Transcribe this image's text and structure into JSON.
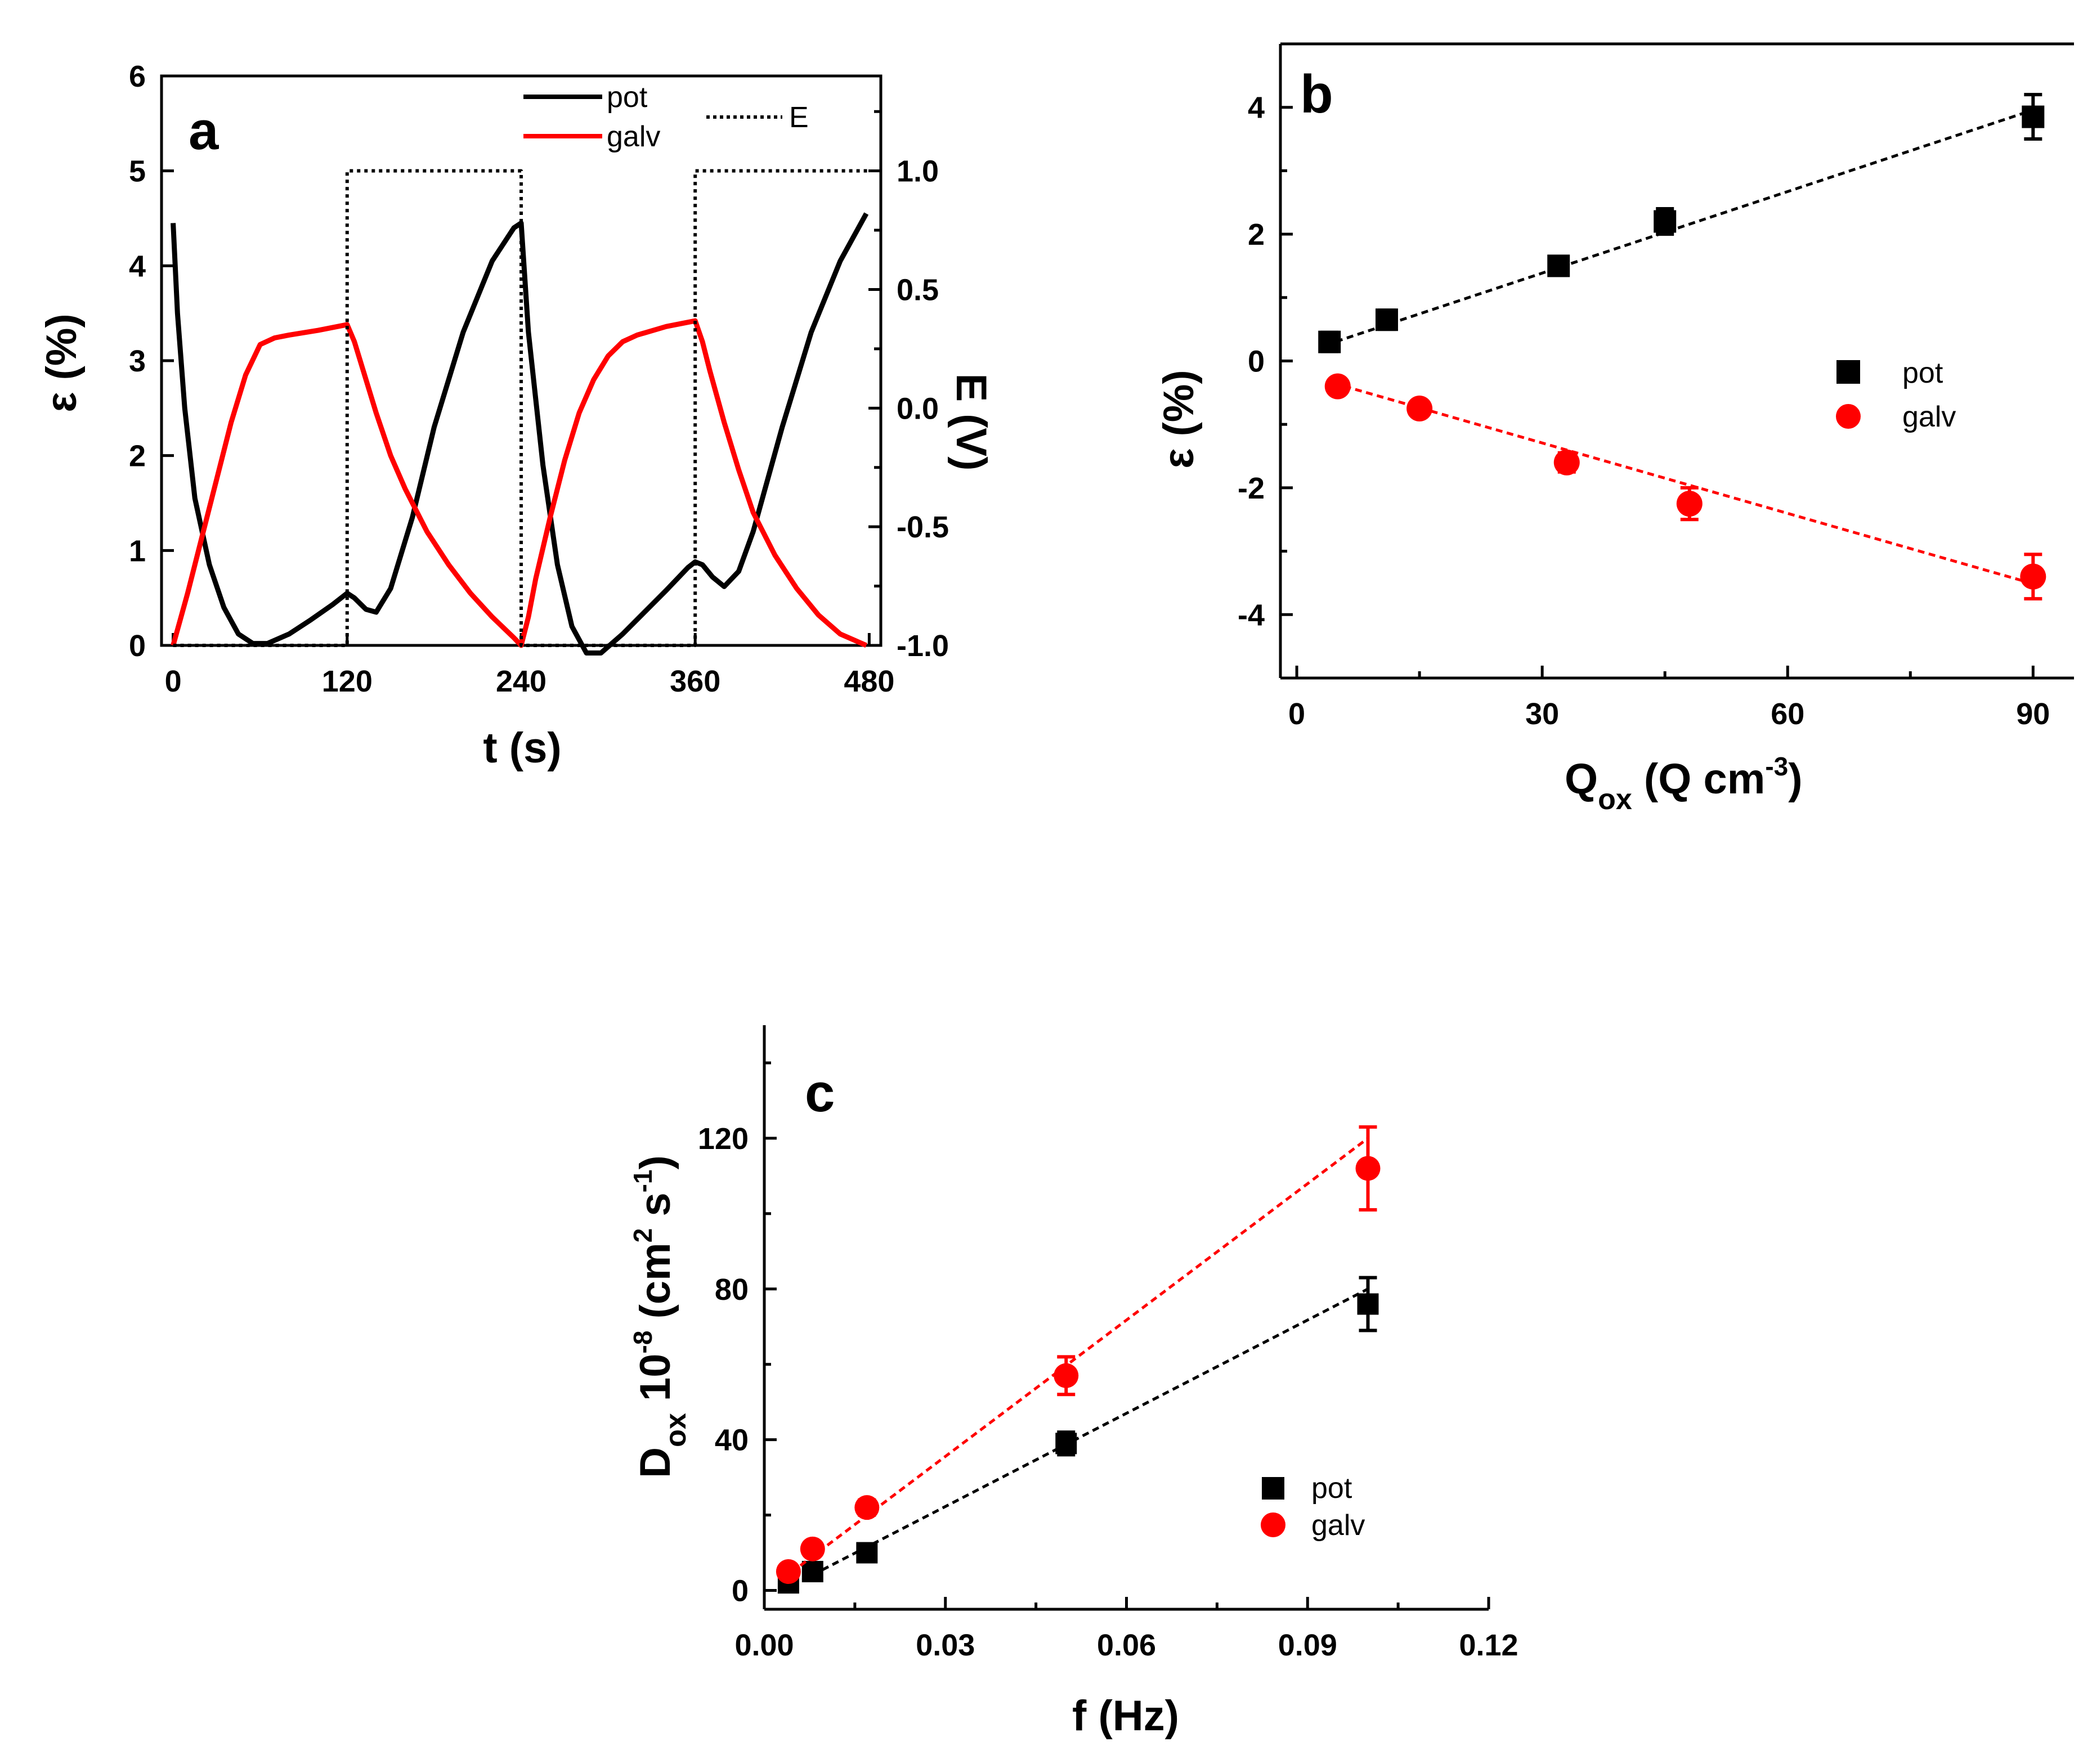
{
  "colors": {
    "pot": "#000000",
    "galv": "#ff0000",
    "E": "#000000"
  },
  "chart_data": [
    {
      "id": "a",
      "type": "line",
      "panel_label": "a",
      "xlabel": "t (s)",
      "ylabel": "ε (%)",
      "y2label": "E (V)",
      "xlim": [
        -8,
        488
      ],
      "ylim": [
        0,
        6
      ],
      "y2lim": [
        -1.0,
        1.5
      ],
      "xticks": [
        "0",
        "120",
        "240",
        "360",
        "480"
      ],
      "yticks": [
        "0",
        "1",
        "2",
        "3",
        "4",
        "5",
        "6"
      ],
      "y2ticks": [
        "-1.0",
        "-0.5",
        "0.0",
        "0.5",
        "1.0"
      ],
      "legend": {
        "pot": "pot",
        "galv": "galv",
        "E": "E"
      },
      "series": [
        {
          "name": "pot",
          "axis": "left",
          "style": "solid",
          "x": [
            0,
            3,
            8,
            15,
            25,
            35,
            45,
            55,
            65,
            80,
            95,
            110,
            120,
            125,
            133,
            140,
            150,
            165,
            180,
            200,
            220,
            235,
            240,
            245,
            255,
            265,
            275,
            285,
            295,
            310,
            325,
            340,
            355,
            360,
            365,
            372,
            380,
            390,
            400,
            420,
            440,
            460,
            478
          ],
          "y": [
            4.45,
            3.5,
            2.5,
            1.55,
            0.85,
            0.4,
            0.12,
            0.02,
            0.02,
            0.12,
            0.27,
            0.43,
            0.55,
            0.5,
            0.38,
            0.35,
            0.6,
            1.35,
            2.3,
            3.3,
            4.05,
            4.4,
            4.45,
            3.3,
            1.9,
            0.85,
            0.2,
            -0.08,
            -0.08,
            0.12,
            0.35,
            0.58,
            0.82,
            0.88,
            0.85,
            0.72,
            0.62,
            0.78,
            1.2,
            2.3,
            3.3,
            4.05,
            4.55
          ]
        },
        {
          "name": "galv",
          "axis": "left",
          "style": "solid",
          "x": [
            0,
            10,
            20,
            30,
            40,
            50,
            60,
            70,
            80,
            100,
            120,
            125,
            130,
            140,
            150,
            160,
            175,
            190,
            205,
            220,
            235,
            240,
            245,
            250,
            260,
            270,
            280,
            290,
            300,
            310,
            320,
            340,
            360,
            365,
            370,
            380,
            390,
            400,
            415,
            430,
            445,
            460,
            478
          ],
          "y": [
            0,
            0.55,
            1.15,
            1.75,
            2.35,
            2.85,
            3.17,
            3.24,
            3.27,
            3.32,
            3.38,
            3.2,
            2.95,
            2.45,
            2.0,
            1.65,
            1.2,
            0.85,
            0.55,
            0.3,
            0.08,
            0.0,
            0.3,
            0.7,
            1.35,
            1.95,
            2.45,
            2.8,
            3.05,
            3.2,
            3.27,
            3.36,
            3.42,
            3.2,
            2.9,
            2.35,
            1.85,
            1.4,
            0.95,
            0.6,
            0.32,
            0.12,
            0.0
          ]
        },
        {
          "name": "E",
          "axis": "right",
          "style": "dotted",
          "x": [
            0,
            120,
            120,
            240,
            240,
            360,
            360,
            480
          ],
          "y": [
            -1.0,
            -1.0,
            1.0,
            1.0,
            -1.0,
            -1.0,
            1.0,
            1.0
          ]
        }
      ]
    },
    {
      "id": "b",
      "type": "scatter",
      "panel_label": "b",
      "xlabel": "Q",
      "xlabel_sub": "ox",
      "xlabel_rest": " (Q cm",
      "xlabel_sup": "-3",
      "xlabel_end": ")",
      "ylabel": "ε (%)",
      "xlim": [
        -2,
        95
      ],
      "ylim": [
        -5,
        5
      ],
      "xticks": [
        "0",
        "30",
        "60",
        "90"
      ],
      "yticks": [
        "-4",
        "-2",
        "0",
        "2",
        "4"
      ],
      "legend": {
        "pot": "pot",
        "galv": "galv"
      },
      "series": [
        {
          "name": "pot",
          "marker": "square",
          "x": [
            4,
            11,
            32,
            45,
            90
          ],
          "y": [
            0.3,
            0.65,
            1.5,
            2.2,
            3.85
          ],
          "err": [
            0.15,
            0.15,
            0.15,
            0.2,
            0.35
          ],
          "fit": {
            "x": [
              3.5,
              91
            ],
            "y": [
              0.25,
              4.0
            ]
          }
        },
        {
          "name": "galv",
          "marker": "circle",
          "x": [
            5,
            15,
            33,
            48,
            90
          ],
          "y": [
            -0.4,
            -0.75,
            -1.6,
            -2.25,
            -3.4
          ],
          "err": [
            0.1,
            0.1,
            0.15,
            0.25,
            0.35
          ],
          "fit": {
            "x": [
              4.5,
              91
            ],
            "y": [
              -0.35,
              -3.55
            ]
          }
        }
      ]
    },
    {
      "id": "c",
      "type": "scatter",
      "panel_label": "c",
      "xlabel": "f (Hz)",
      "ylabel_main": "D",
      "ylabel_sub": "ox",
      "ylabel_mid": " 10",
      "ylabel_sup": "-8",
      "ylabel_rest": " (cm",
      "ylabel_sup2": "2",
      "ylabel_rest2": " s",
      "ylabel_sup3": "-1",
      "ylabel_end": ")",
      "xlim": [
        0,
        0.12
      ],
      "ylim": [
        -5,
        150
      ],
      "xticks": [
        "0.00",
        "0.03",
        "0.06",
        "0.09",
        "0.12"
      ],
      "yticks": [
        "0",
        "40",
        "80",
        "120"
      ],
      "legend": {
        "pot": "pot",
        "galv": "galv"
      },
      "series": [
        {
          "name": "pot",
          "marker": "square",
          "x": [
            0.004,
            0.008,
            0.017,
            0.05,
            0.1
          ],
          "y": [
            2,
            5,
            10,
            39,
            76
          ],
          "err": [
            1,
            1.5,
            2,
            3,
            7
          ],
          "fit": {
            "x": [
              0.003,
              0.1
            ],
            "y": [
              0,
              80
            ]
          }
        },
        {
          "name": "galv",
          "marker": "circle",
          "x": [
            0.004,
            0.008,
            0.017,
            0.05,
            0.1
          ],
          "y": [
            5,
            11,
            22,
            57,
            112
          ],
          "err": [
            1,
            1.5,
            2,
            5,
            11
          ],
          "fit": {
            "x": [
              0.003,
              0.1
            ],
            "y": [
              3,
              120
            ]
          }
        }
      ]
    }
  ]
}
